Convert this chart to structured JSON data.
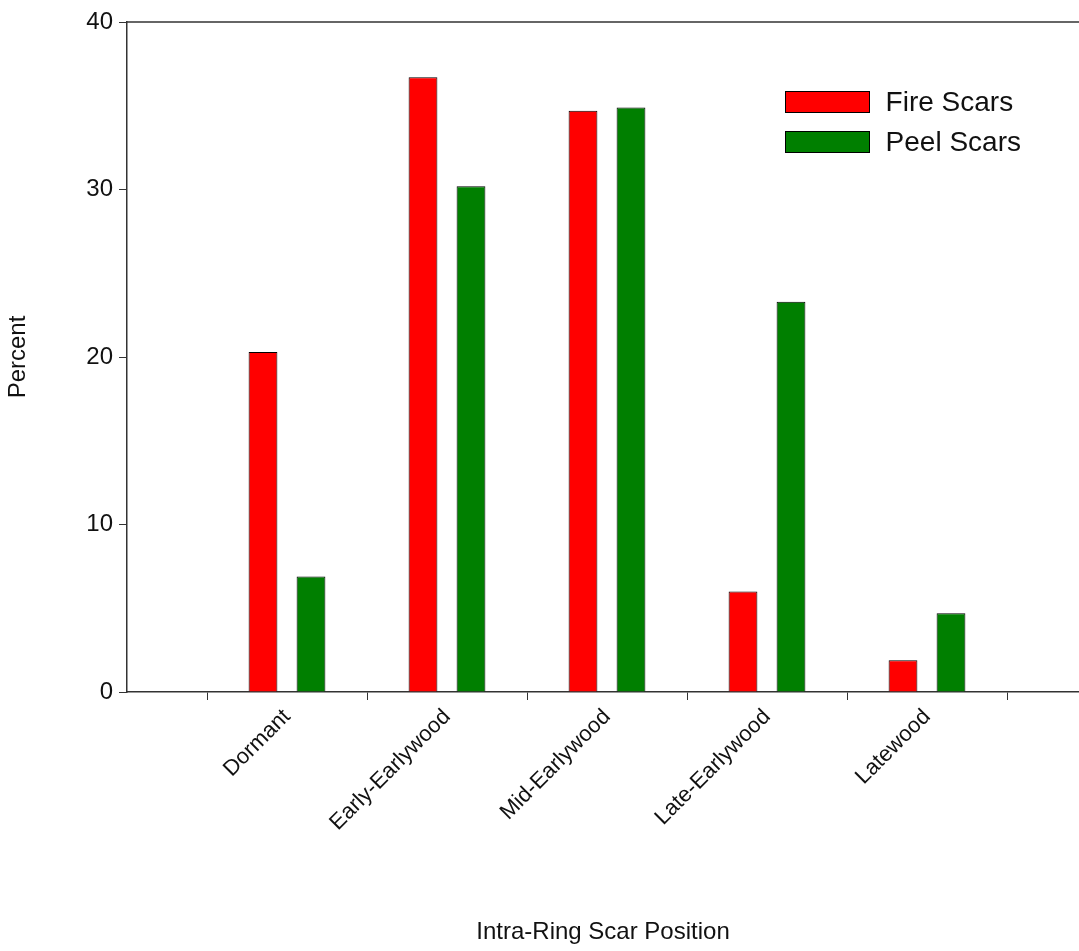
{
  "chart_data": {
    "type": "bar",
    "xlabel": "Intra-Ring Scar Position",
    "ylabel": "Percent",
    "categories": [
      "Dormant",
      "Early-Earlywood",
      "Mid-Earlywood",
      "Late-Earlywood",
      "Latewood"
    ],
    "series": [
      {
        "name": "Fire Scars",
        "color": "#ff0000",
        "values": [
          20.3,
          36.7,
          34.7,
          6.0,
          1.9
        ]
      },
      {
        "name": "Peel Scars",
        "color": "#007f00",
        "values": [
          6.9,
          30.2,
          34.9,
          23.3,
          4.7
        ]
      }
    ],
    "ylim": [
      0,
      40
    ],
    "yticks": [
      0,
      10,
      20,
      30,
      40
    ],
    "grid": false,
    "legend": "top right"
  }
}
